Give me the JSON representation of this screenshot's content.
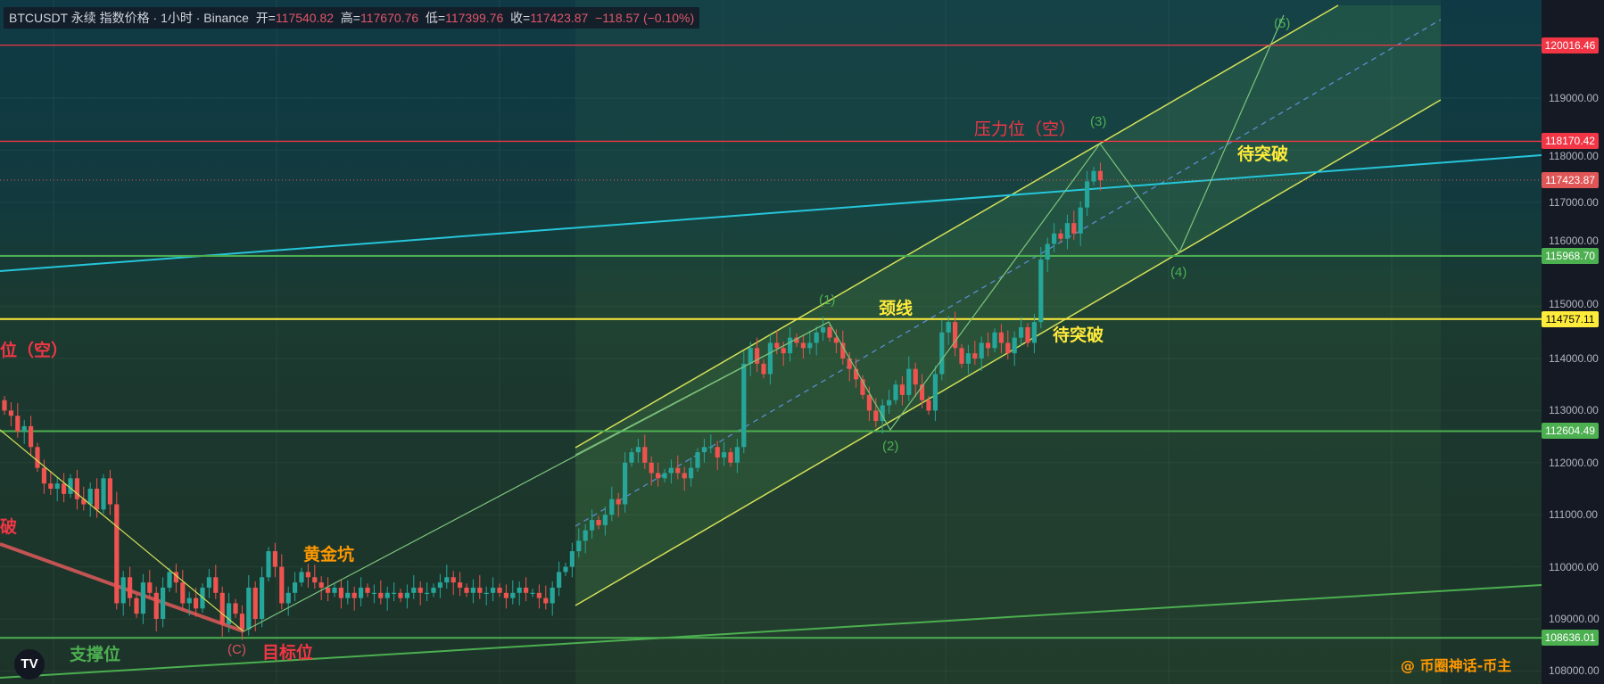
{
  "header": {
    "symbol_info": "BTCUSDT 永续 指数价格 · 1小时 · Binance",
    "open_label": "开=",
    "open": "117540.82",
    "high_label": "高=",
    "high": "117670.76",
    "low_label": "低=",
    "low": "117399.76",
    "close_label": "收=",
    "close": "117423.87",
    "change": "−118.57 (−0.10%)"
  },
  "annotations": {
    "resistance_short": "压力位（空）",
    "resistance_short_partial": "位（空）",
    "break_partial": "破",
    "neckline": "颈线",
    "pending_break_upper": "待突破",
    "pending_break_lower": "待突破",
    "golden_pit": "黄金坑",
    "support": "支撑位",
    "target": "目标位",
    "wave_c": "(C)",
    "wave_1": "(1)",
    "wave_2": "(2)",
    "wave_3": "(3)",
    "wave_4": "(4)",
    "wave_5": "(5)",
    "watermark": "@ 币圈神话-币主",
    "logo": "TV"
  },
  "colors": {
    "up": "#26a69a",
    "down": "#ef5350",
    "resistance": "#f23645",
    "support": "#4caf50",
    "neckline": "#ffeb3b",
    "trend": "#26c6da",
    "channel": "#d4e157"
  },
  "chart_data": {
    "type": "candlestick",
    "title": "BTCUSDT 永续 指数价格 · 1小时 · Binance",
    "ylim": [
      107800,
      120900
    ],
    "y_ticks": [
      108000,
      109000,
      110000,
      111000,
      112000,
      113000,
      114000,
      115000,
      116000,
      117000,
      118000,
      119000
    ],
    "y_tick_labels": [
      "108000.00",
      "109000.00",
      "110000.00",
      "111000.00",
      "112000.00",
      "113000.00",
      "114000.00",
      "115000.00",
      "116000.00",
      "117000.00",
      "118000.00",
      "119000.00"
    ],
    "first_open": 113200,
    "closes": [
      113000,
      112900,
      112600,
      112700,
      112300,
      111900,
      111600,
      111500,
      111600,
      111400,
      111700,
      111300,
      111200,
      111500,
      111100,
      111700,
      111200,
      109300,
      109800,
      109400,
      109100,
      109700,
      109500,
      109000,
      109600,
      109900,
      109700,
      109300,
      109400,
      109200,
      109600,
      109800,
      109500,
      108900,
      109300,
      109100,
      108800,
      109600,
      109000,
      109800,
      110300,
      110000,
      109300,
      109500,
      109700,
      109900,
      109800,
      109700,
      109600,
      109500,
      109600,
      109400,
      109500,
      109400,
      109600,
      109500,
      109500,
      109400,
      109500,
      109500,
      109400,
      109500,
      109600,
      109500,
      109500,
      109600,
      109700,
      109800,
      109700,
      109600,
      109500,
      109600,
      109500,
      109500,
      109600,
      109500,
      109400,
      109500,
      109600,
      109500,
      109500,
      109400,
      109300,
      109600,
      109900,
      110000,
      110300,
      110500,
      110700,
      110900,
      110800,
      111000,
      111300,
      111200,
      112000,
      112200,
      112300,
      112000,
      111800,
      111700,
      111800,
      111900,
      111800,
      111700,
      111900,
      112200,
      112300,
      112300,
      112100,
      112200,
      112000,
      112300,
      113900,
      114200,
      113900,
      113700,
      114300,
      114200,
      114100,
      114400,
      114300,
      114200,
      114300,
      114500,
      114600,
      114400,
      114300,
      114000,
      113800,
      113600,
      113300,
      113000,
      112800,
      113100,
      113200,
      113500,
      113300,
      113800,
      113500,
      113200,
      113000,
      113700,
      114500,
      114700,
      114200,
      113900,
      114100,
      114000,
      114300,
      114200,
      114500,
      114300,
      114100,
      114400,
      114600,
      114300,
      114700,
      115900,
      116200,
      116400,
      116300,
      116600,
      116400,
      116900,
      117400,
      117600,
      117423.87
    ],
    "levels": [
      {
        "price": 120016.46,
        "label": "120016.46",
        "kind": "resistance"
      },
      {
        "price": 118170.42,
        "label": "118170.42",
        "kind": "resistance"
      },
      {
        "price": 117423.87,
        "label": "117423.87",
        "kind": "last"
      },
      {
        "price": 115968.7,
        "label": "115968.70",
        "kind": "support"
      },
      {
        "price": 114757.11,
        "label": "114757.11",
        "kind": "neckline"
      },
      {
        "price": 112604.49,
        "label": "112604.49",
        "kind": "support"
      },
      {
        "price": 108636.01,
        "label": "108636.01",
        "kind": "support"
      }
    ]
  }
}
